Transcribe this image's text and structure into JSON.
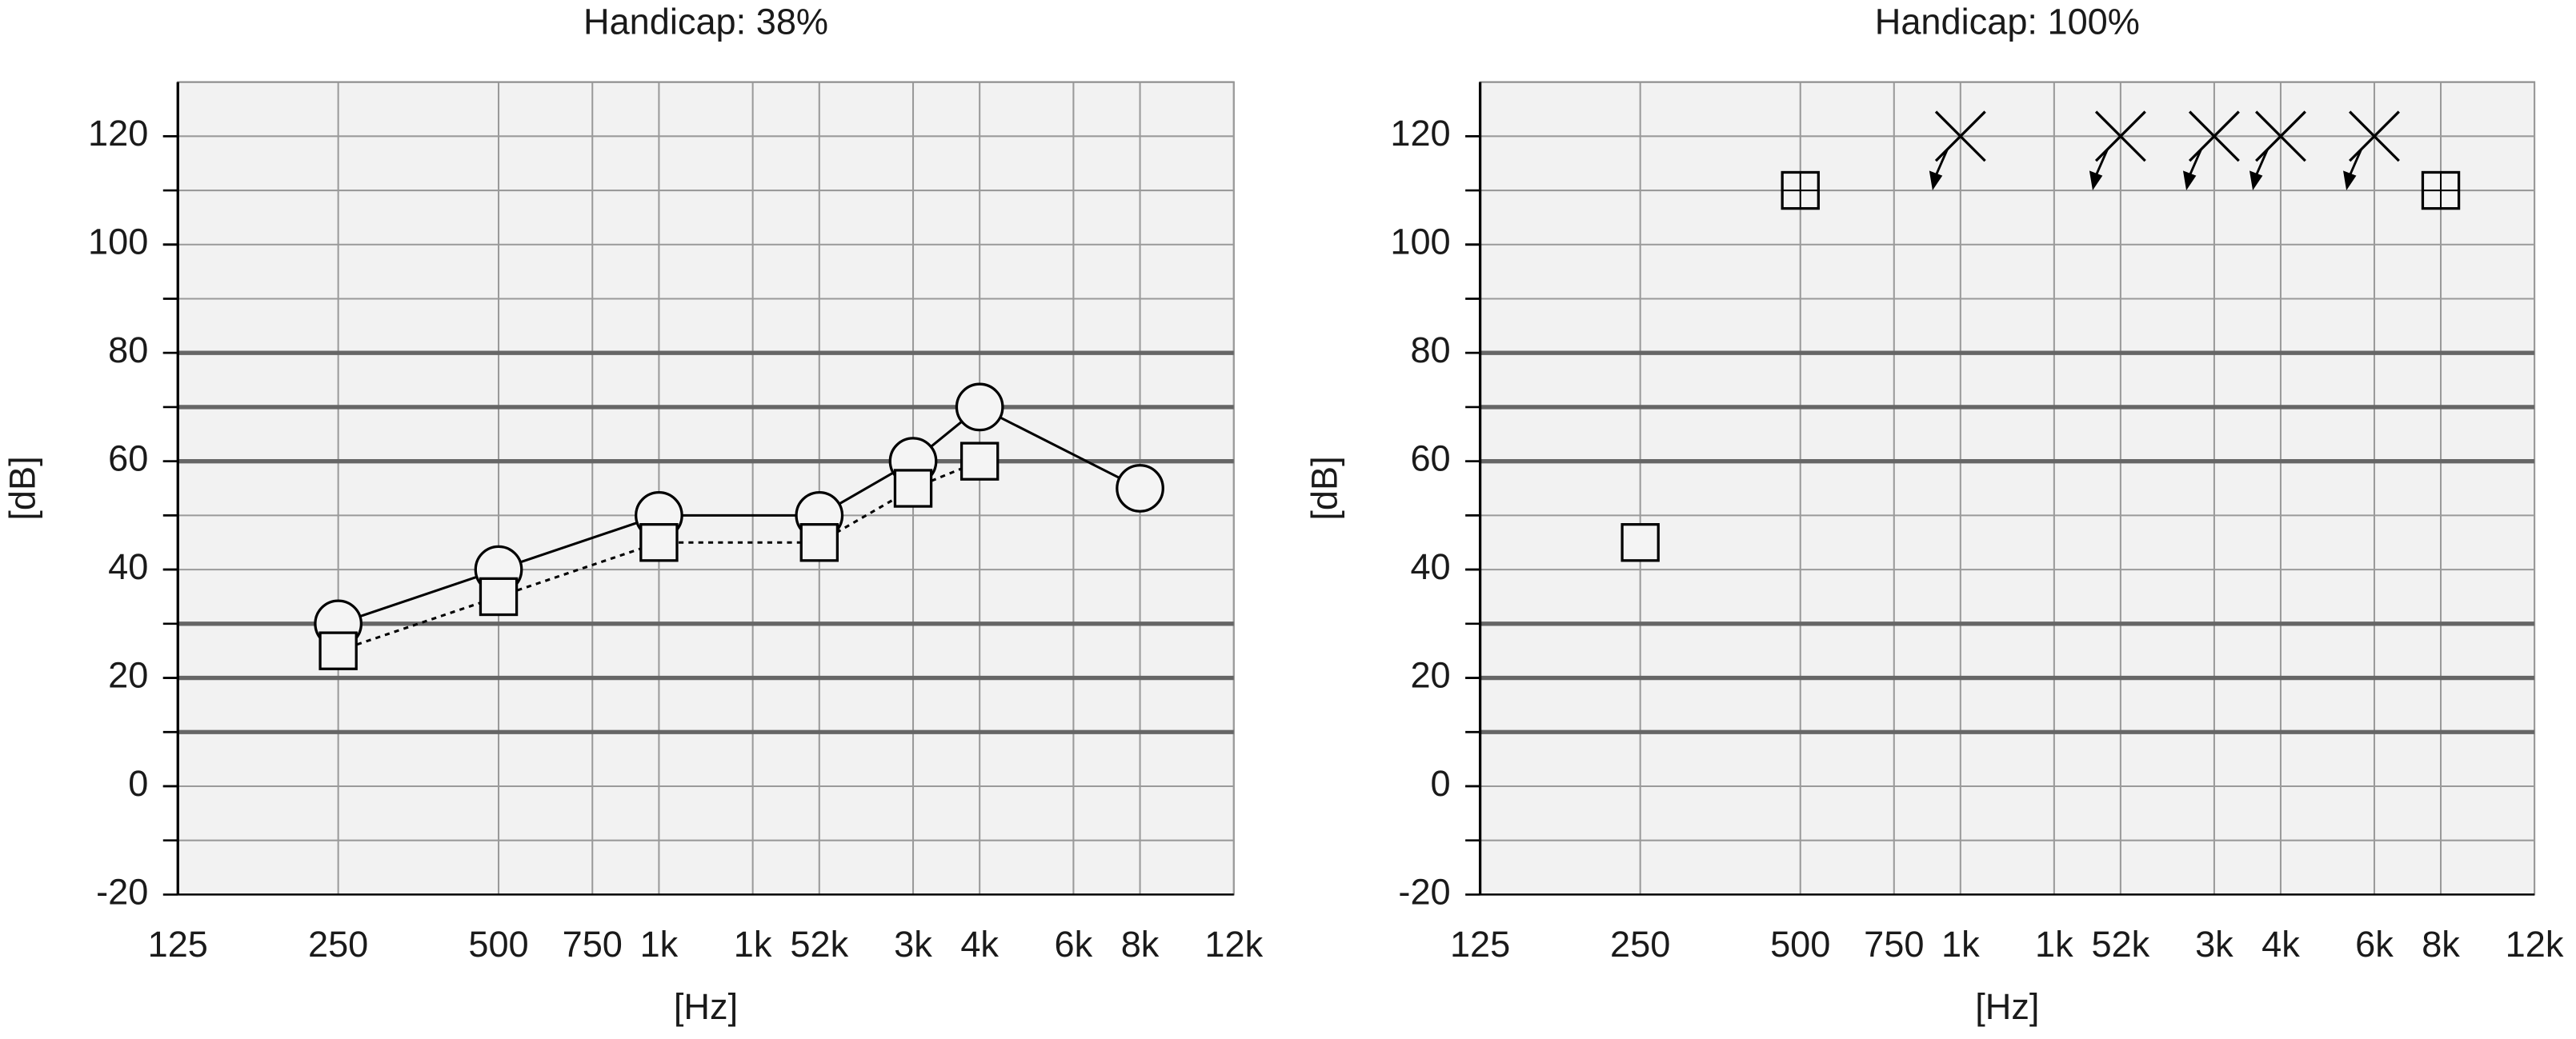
{
  "chart_data": [
    {
      "type": "line",
      "title": "Handicap: 38%",
      "x_label": "[Hz]",
      "y_label": "[dB]",
      "categories": [
        "125",
        "250",
        "500",
        "750",
        "1k",
        "1k",
        "52k",
        "3k",
        "4k",
        "6k",
        "8k",
        "12k"
      ],
      "ylim": [
        130,
        -20
      ],
      "yticks": [
        -20,
        0,
        20,
        40,
        60,
        80,
        100,
        120
      ],
      "grid_y": [
        -10,
        0,
        10,
        20,
        30,
        40,
        50,
        60,
        70,
        80,
        90,
        100,
        110,
        120
      ],
      "grid_y_bold": [
        10,
        20,
        30,
        60,
        70,
        80
      ],
      "series": [
        {
          "marker": "circle",
          "line_style": "solid",
          "color": "#000000",
          "values": [
            null,
            30,
            40,
            null,
            50,
            null,
            50,
            60,
            70,
            null,
            55,
            null
          ]
        },
        {
          "marker": "square",
          "line_style": "dotted",
          "color": "#000000",
          "values": [
            null,
            25,
            35,
            null,
            45,
            null,
            45,
            55,
            60,
            null,
            null,
            null
          ]
        }
      ]
    },
    {
      "type": "line",
      "title": "Handicap: 100%",
      "x_label": "[Hz]",
      "y_label": "[dB]",
      "categories": [
        "125",
        "250",
        "500",
        "750",
        "1k",
        "1k",
        "52k",
        "3k",
        "4k",
        "6k",
        "8k",
        "12k"
      ],
      "ylim": [
        130,
        -20
      ],
      "yticks": [
        -20,
        0,
        20,
        40,
        60,
        80,
        100,
        120
      ],
      "grid_y": [
        -10,
        0,
        10,
        20,
        30,
        40,
        50,
        60,
        70,
        80,
        90,
        100,
        110,
        120
      ],
      "grid_y_bold": [
        10,
        20,
        30,
        60,
        70,
        80
      ],
      "series": [
        {
          "marker": "square",
          "line_style": "none",
          "color": "#000000",
          "values": [
            null,
            45,
            null,
            null,
            null,
            null,
            null,
            null,
            null,
            null,
            null,
            null
          ]
        },
        {
          "marker": "square-cross",
          "line_style": "none",
          "color": "#000000",
          "values": [
            null,
            null,
            110,
            null,
            null,
            null,
            null,
            null,
            null,
            null,
            110,
            null
          ]
        },
        {
          "marker": "x-arrow",
          "line_style": "none",
          "color": "#000000",
          "values": [
            null,
            null,
            null,
            null,
            120,
            null,
            120,
            120,
            120,
            120,
            null,
            null
          ]
        }
      ]
    }
  ]
}
